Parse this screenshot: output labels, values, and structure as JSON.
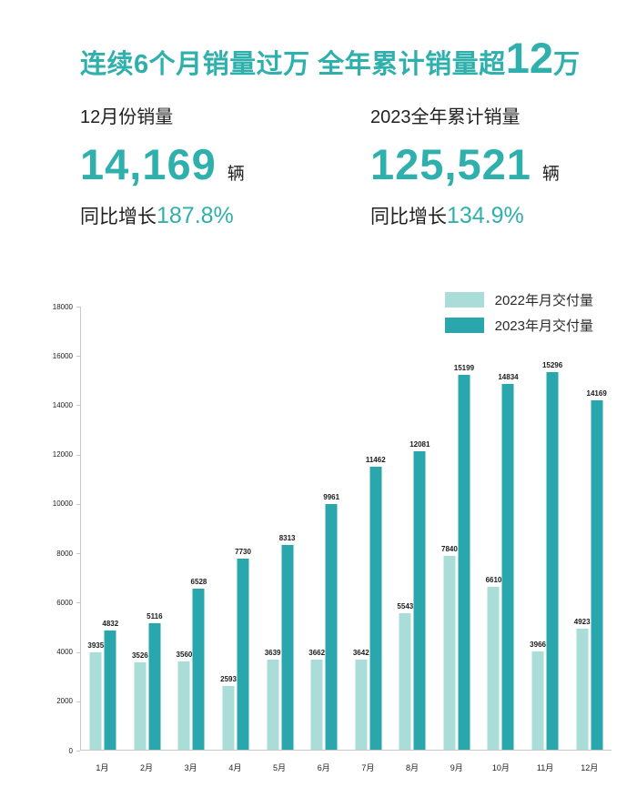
{
  "title": {
    "prefix": "连续6个月销量过万 全年累计销量超",
    "highlight": "12",
    "suffix": "万"
  },
  "stats": {
    "month": {
      "label": "12月份销量",
      "value": "14,169",
      "unit": "辆",
      "growth_label": "同比增长",
      "growth_value": "187.8%"
    },
    "year": {
      "label": "2023全年累计销量",
      "value": "125,521",
      "unit": "辆",
      "growth_label": "同比增长",
      "growth_value": "134.9%"
    }
  },
  "colors": {
    "accent": "#2FB0AC",
    "bar_2022": "#AADCD8",
    "bar_2023": "#29A7AD",
    "text_dark": "#212121",
    "axis": "#C9C9C9"
  },
  "chart_data": {
    "type": "bar",
    "categories": [
      "1月",
      "2月",
      "3月",
      "4月",
      "5月",
      "6月",
      "7月",
      "8月",
      "9月",
      "10月",
      "11月",
      "12月"
    ],
    "series": [
      {
        "name": "2022年月交付量",
        "color_key": "bar_2022",
        "values": [
          3935,
          3526,
          3560,
          2593,
          3639,
          3662,
          3642,
          5543,
          7840,
          6610,
          3966,
          4923
        ]
      },
      {
        "name": "2023年月交付量",
        "color_key": "bar_2023",
        "values": [
          4832,
          5116,
          6528,
          7730,
          8313,
          9961,
          11462,
          12081,
          15199,
          14834,
          15296,
          14169
        ]
      }
    ],
    "ylim": [
      0,
      18000
    ],
    "ytick_step": 2000,
    "grid": false,
    "legend_position": "top-right",
    "value_labels": true
  }
}
